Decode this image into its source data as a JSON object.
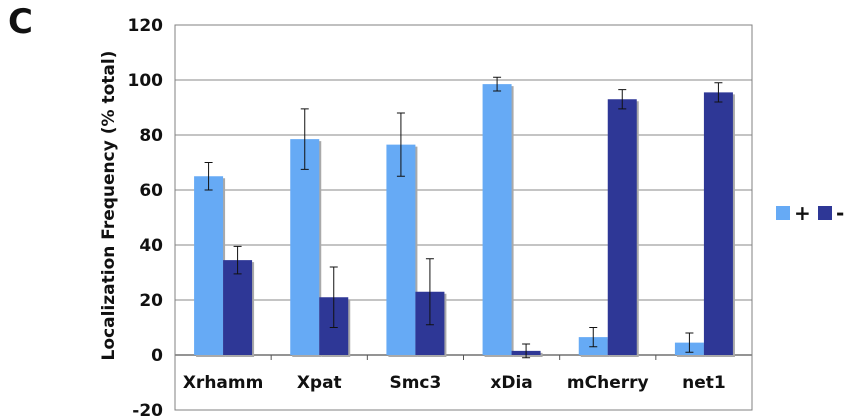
{
  "panel_label": "C",
  "chart_data": {
    "type": "bar",
    "title": "",
    "xlabel": "",
    "ylabel": "Localization Frequency (% total)",
    "ylim": [
      -20,
      120
    ],
    "yticks": [
      -20,
      0,
      20,
      40,
      60,
      80,
      100,
      120
    ],
    "grid": "horizontal",
    "legend_position": "right",
    "categories": [
      "Xrhamm",
      "Xpat",
      "Smc3",
      "xDia",
      "mCherry",
      "net1"
    ],
    "series": [
      {
        "name": "+",
        "color": "#66aaf5",
        "values": [
          65,
          78.5,
          76.5,
          98.5,
          6.5,
          4.5
        ],
        "errors": [
          5,
          11,
          11.5,
          2.5,
          3.5,
          3.5
        ]
      },
      {
        "name": "-",
        "color": "#2e3796",
        "values": [
          34.5,
          21,
          23,
          1.5,
          93,
          95.5
        ],
        "errors": [
          5,
          11,
          12,
          2.5,
          3.5,
          3.5
        ]
      }
    ]
  }
}
